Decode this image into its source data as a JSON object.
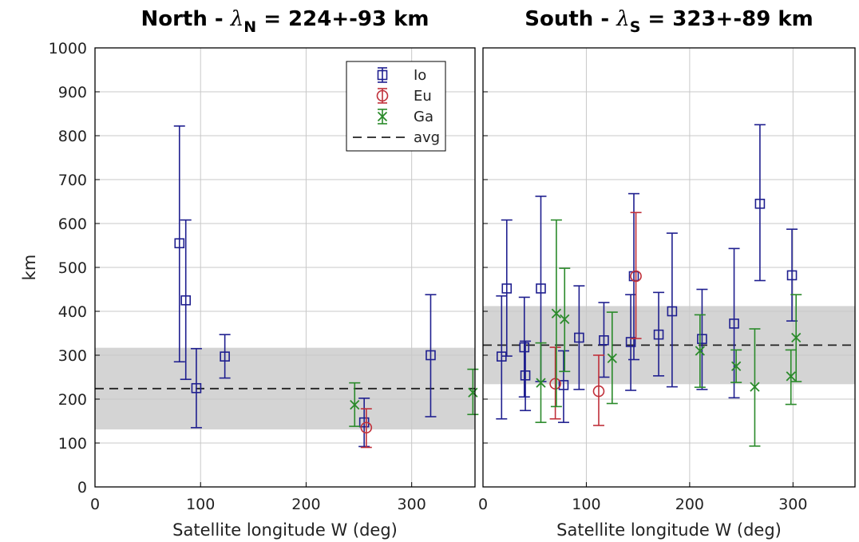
{
  "colors": {
    "Io": "#1f1f8f",
    "Eu": "#c0303a",
    "Ga": "#2a8a2a",
    "band": "#d4d4d4",
    "avg": "#222222"
  },
  "chart_data": [
    {
      "type": "scatter",
      "title_prefix": "North - ",
      "title_lambda": "λ",
      "title_sub": "N",
      "title_value": " = 224+-93 km",
      "xlabel": "Satellite longitude W (deg)",
      "ylabel": "km",
      "xlim": [
        0,
        360
      ],
      "ylim": [
        0,
        1000
      ],
      "xticks": [
        0,
        100,
        200,
        300
      ],
      "yticks": [
        0,
        100,
        200,
        300,
        400,
        500,
        600,
        700,
        800,
        900,
        1000
      ],
      "grid": true,
      "avg": 224,
      "band": [
        131,
        317
      ],
      "legend": {
        "position": "top-right",
        "entries": [
          "Io",
          "Eu",
          "Ga",
          "avg"
        ]
      },
      "series": [
        {
          "name": "Io",
          "marker": "square",
          "points": [
            {
              "x": 80,
              "y": 555,
              "lo": 285,
              "hi": 822
            },
            {
              "x": 86,
              "y": 425,
              "lo": 245,
              "hi": 608
            },
            {
              "x": 96,
              "y": 225,
              "lo": 135,
              "hi": 315
            },
            {
              "x": 123,
              "y": 297,
              "lo": 248,
              "hi": 347
            },
            {
              "x": 255,
              "y": 147,
              "lo": 92,
              "hi": 202
            },
            {
              "x": 318,
              "y": 300,
              "lo": 160,
              "hi": 438
            }
          ]
        },
        {
          "name": "Eu",
          "marker": "circle",
          "points": [
            {
              "x": 257,
              "y": 135,
              "lo": 90,
              "hi": 178
            }
          ]
        },
        {
          "name": "Ga",
          "marker": "x",
          "points": [
            {
              "x": 246,
              "y": 187,
              "lo": 138,
              "hi": 237
            },
            {
              "x": 358,
              "y": 215,
              "lo": 165,
              "hi": 268
            }
          ]
        }
      ]
    },
    {
      "type": "scatter",
      "title_prefix": "South - ",
      "title_lambda": "λ",
      "title_sub": "S",
      "title_value": " = 323+-89 km",
      "xlabel": "Satellite longitude W (deg)",
      "ylabel": "",
      "xlim": [
        0,
        360
      ],
      "ylim": [
        0,
        1000
      ],
      "xticks": [
        0,
        100,
        200,
        300
      ],
      "yticks": [
        0,
        100,
        200,
        300,
        400,
        500,
        600,
        700,
        800,
        900,
        1000
      ],
      "grid": true,
      "avg": 323,
      "band": [
        234,
        412
      ],
      "legend": null,
      "series": [
        {
          "name": "Io",
          "marker": "square",
          "points": [
            {
              "x": 18,
              "y": 297,
              "lo": 155,
              "hi": 435
            },
            {
              "x": 23,
              "y": 452,
              "lo": 298,
              "hi": 608
            },
            {
              "x": 40,
              "y": 318,
              "lo": 205,
              "hi": 432
            },
            {
              "x": 41,
              "y": 254,
              "lo": 174,
              "hi": 332
            },
            {
              "x": 56,
              "y": 452,
              "lo": 240,
              "hi": 662
            },
            {
              "x": 78,
              "y": 232,
              "lo": 147,
              "hi": 310
            },
            {
              "x": 93,
              "y": 340,
              "lo": 222,
              "hi": 458
            },
            {
              "x": 117,
              "y": 334,
              "lo": 250,
              "hi": 420
            },
            {
              "x": 143,
              "y": 330,
              "lo": 220,
              "hi": 438
            },
            {
              "x": 146,
              "y": 480,
              "lo": 290,
              "hi": 668
            },
            {
              "x": 170,
              "y": 347,
              "lo": 253,
              "hi": 443
            },
            {
              "x": 183,
              "y": 400,
              "lo": 228,
              "hi": 578
            },
            {
              "x": 212,
              "y": 337,
              "lo": 222,
              "hi": 450
            },
            {
              "x": 243,
              "y": 372,
              "lo": 203,
              "hi": 543
            },
            {
              "x": 268,
              "y": 645,
              "lo": 470,
              "hi": 825
            },
            {
              "x": 299,
              "y": 482,
              "lo": 378,
              "hi": 587
            }
          ]
        },
        {
          "name": "Eu",
          "marker": "circle",
          "points": [
            {
              "x": 70,
              "y": 235,
              "lo": 155,
              "hi": 318
            },
            {
              "x": 112,
              "y": 218,
              "lo": 140,
              "hi": 300
            },
            {
              "x": 148,
              "y": 480,
              "lo": 338,
              "hi": 625
            }
          ]
        },
        {
          "name": "Ga",
          "marker": "x",
          "points": [
            {
              "x": 56,
              "y": 237,
              "lo": 147,
              "hi": 328
            },
            {
              "x": 71,
              "y": 395,
              "lo": 183,
              "hi": 608
            },
            {
              "x": 79,
              "y": 382,
              "lo": 263,
              "hi": 498
            },
            {
              "x": 125,
              "y": 293,
              "lo": 190,
              "hi": 398
            },
            {
              "x": 210,
              "y": 310,
              "lo": 227,
              "hi": 392
            },
            {
              "x": 245,
              "y": 275,
              "lo": 238,
              "hi": 312
            },
            {
              "x": 263,
              "y": 228,
              "lo": 93,
              "hi": 360
            },
            {
              "x": 298,
              "y": 252,
              "lo": 188,
              "hi": 312
            },
            {
              "x": 303,
              "y": 340,
              "lo": 240,
              "hi": 438
            }
          ]
        }
      ]
    }
  ]
}
